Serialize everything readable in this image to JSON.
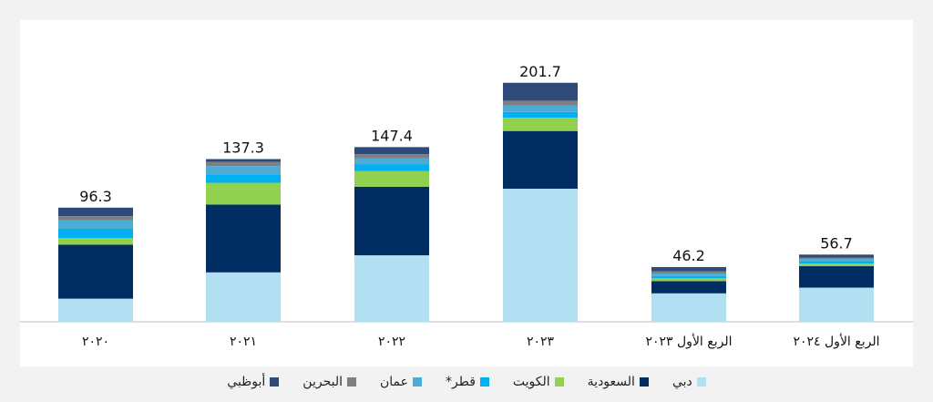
{
  "chart_data": {
    "type": "bar",
    "stacked": true,
    "categories": [
      "٢٠٢٠",
      "٢٠٢١",
      "٢٠٢٢",
      "٢٠٢٣",
      "الربع الأول ٢٠٢٣",
      "الربع الأول ٢٠٢٤"
    ],
    "totals": [
      "96.3",
      "137.3",
      "147.4",
      "201.7",
      "46.2",
      "56.7"
    ],
    "series": [
      {
        "name": "دبي",
        "color": "#b3dff2",
        "values": [
          19.5,
          41.7,
          56.1,
          112.3,
          24.0,
          28.8
        ]
      },
      {
        "name": "السعودية",
        "color": "#002d62",
        "values": [
          45.5,
          57.2,
          57.9,
          48.7,
          10.3,
          18.1
        ]
      },
      {
        "name": "الكويت",
        "color": "#92d050",
        "values": [
          5.6,
          18.4,
          13.2,
          11.2,
          2.4,
          2.3
        ]
      },
      {
        "name": "قطر*",
        "color": "#00b0f0",
        "values": [
          7.9,
          7.0,
          5.5,
          4.9,
          2.0,
          1.9
        ]
      },
      {
        "name": "عمان",
        "color": "#4bacd6",
        "values": [
          7.0,
          7.1,
          5.1,
          5.6,
          2.1,
          1.9
        ]
      },
      {
        "name": "البحرين",
        "color": "#7f7f7f",
        "values": [
          3.6,
          3.5,
          3.6,
          3.9,
          1.8,
          1.2
        ]
      },
      {
        "name": "أبوظبي",
        "color": "#2e4a7a",
        "values": [
          7.2,
          2.4,
          6.0,
          15.1,
          3.6,
          2.5
        ]
      }
    ],
    "ylim": [
      0,
      220
    ],
    "grid": false,
    "legend_position": "bottom"
  }
}
